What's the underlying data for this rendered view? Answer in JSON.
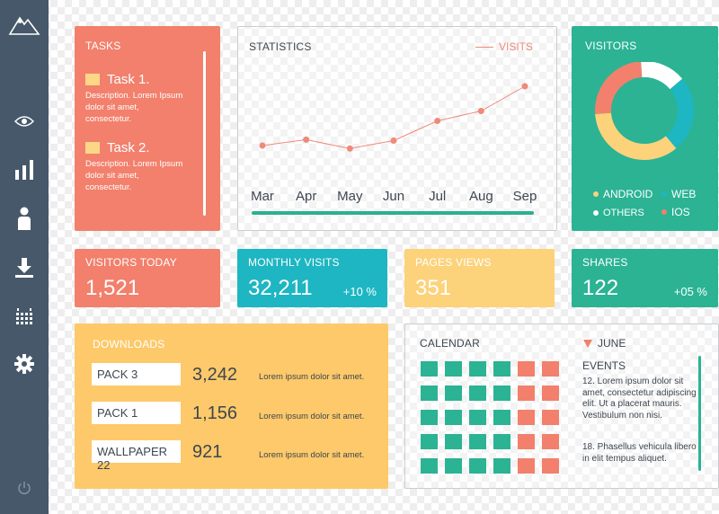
{
  "colors": {
    "sidebar": "#46586a",
    "coral": "#f2806c",
    "teal": "#1db6c2",
    "yellow": "#fcd27b",
    "green": "#2bb394",
    "orange_yellow": "#fdc96a"
  },
  "sidebar": {
    "items": [
      {
        "icon": "mountain-logo-icon"
      },
      {
        "icon": "eye-icon"
      },
      {
        "icon": "bar-chart-icon"
      },
      {
        "icon": "user-icon"
      },
      {
        "icon": "download-icon"
      },
      {
        "icon": "calendar-grid-icon"
      },
      {
        "icon": "gear-icon"
      },
      {
        "icon": "power-icon"
      }
    ]
  },
  "tasks": {
    "title": "TASKS",
    "items": [
      {
        "title": "Task 1.",
        "description": "Description. Lorem Ipsum dolor sit amet, consectetur."
      },
      {
        "title": "Task 2.",
        "description": "Description. Lorem Ipsum dolor sit amet, consectetur."
      }
    ]
  },
  "statistics": {
    "title": "STATISTICS",
    "legend": "VISITS"
  },
  "chart_data": [
    {
      "type": "line",
      "title": "STATISTICS",
      "categories": [
        "Mar",
        "Apr",
        "May",
        "Jun",
        "Jul",
        "Aug",
        "Sep"
      ],
      "series": [
        {
          "name": "VISITS",
          "values": [
            30,
            36,
            27,
            35,
            55,
            65,
            90
          ]
        }
      ],
      "ylim": [
        0,
        100
      ],
      "grid": false,
      "legend": "top-right"
    },
    {
      "type": "pie",
      "title": "VISITORS",
      "categories": [
        "ANDROID",
        "WEB",
        "OTHERS",
        "IOS"
      ],
      "values": [
        35,
        25,
        15,
        25
      ],
      "colors": [
        "#fcd27b",
        "#1db6c2",
        "#ffffff",
        "#f2806c"
      ],
      "legend": "bottom"
    }
  ],
  "visitors": {
    "title": "VISITORS",
    "legend": [
      {
        "label": "ANDROID",
        "color": "#fcd27b"
      },
      {
        "label": "WEB",
        "color": "#1db6c2"
      },
      {
        "label": "OTHERS",
        "color": "#ffffff"
      },
      {
        "label": "IOS",
        "color": "#f2806c"
      }
    ]
  },
  "tiles": [
    {
      "title": "VISITORS TODAY",
      "value": "1,521",
      "change": ""
    },
    {
      "title": "MONTHLY VISITS",
      "value": "32,211",
      "change": "+10 %"
    },
    {
      "title": "PAGES VIEWS",
      "value": "351",
      "change": ""
    },
    {
      "title": "SHARES",
      "value": "122",
      "change": "+05 %"
    }
  ],
  "downloads": {
    "title": "DOWNLOADS",
    "items": [
      {
        "label": "PACK  3",
        "count": "3,242",
        "description": "Lorem ipsum dolor sit amet."
      },
      {
        "label": "PACK  1",
        "count": "1,156",
        "description": "Lorem ipsum dolor sit amet."
      },
      {
        "label": "WALLPAPER 22",
        "count": "921",
        "description": "Lorem ipsum dolor sit amet."
      }
    ]
  },
  "calendar": {
    "title": "CALENDAR",
    "month": "JUNE",
    "events_title": "EVENTS",
    "events": [
      "12. Lorem ipsum dolor sit amet, consectetur adipiscing elit. Ut a placerat mauris. Vestibulum non nisi.",
      "18. Phasellus vehicula libero in elit tempus aliquet."
    ],
    "rows": [
      [
        "green",
        "green",
        "green",
        "green",
        "coral",
        "coral"
      ],
      [
        "green",
        "green",
        "green",
        "green",
        "coral",
        "coral"
      ],
      [
        "green",
        "green",
        "green",
        "green",
        "coral",
        "coral"
      ],
      [
        "green",
        "green",
        "green",
        "green",
        "coral",
        "coral"
      ],
      [
        "green",
        "green",
        "green",
        "green",
        "coral",
        "coral"
      ]
    ]
  }
}
